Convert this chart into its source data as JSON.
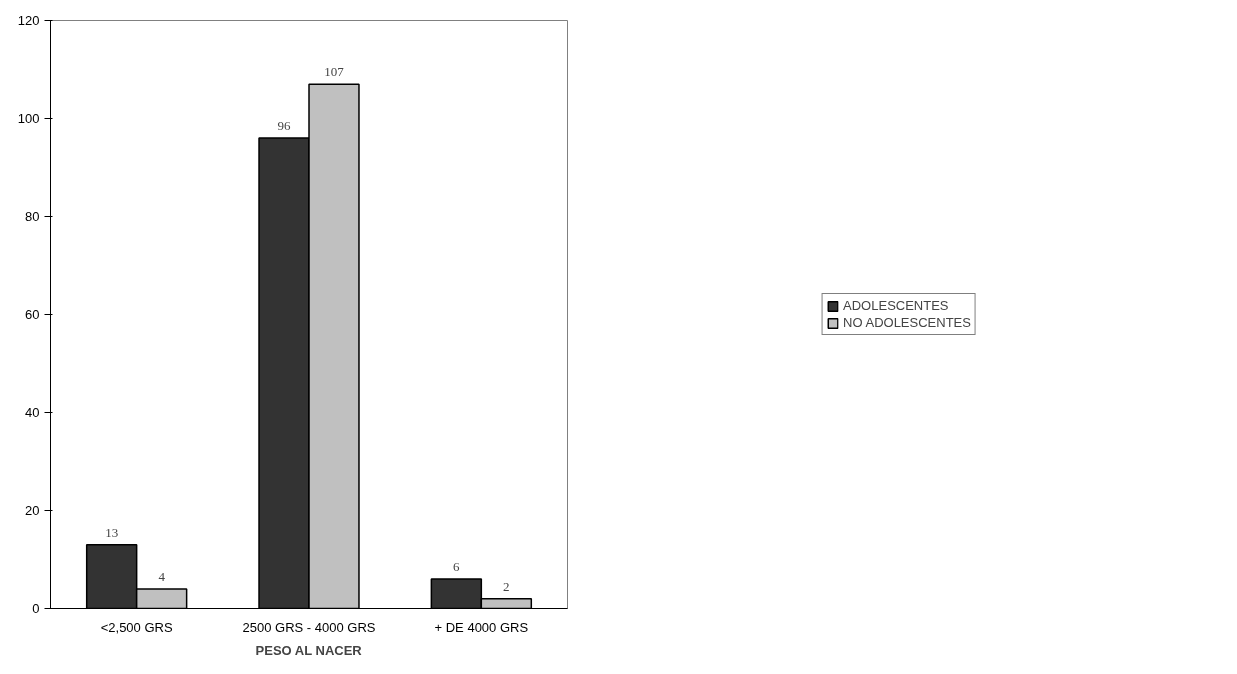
{
  "chart_data": {
    "type": "bar",
    "xlabel": "PESO AL NACER",
    "categories": [
      "<2,500 GRS",
      "2500 GRS - 4000 GRS",
      "+ DE 4000 GRS"
    ],
    "series": [
      {
        "name": "ADOLESCENTES",
        "color": "#333333",
        "values": [
          13,
          96,
          6
        ]
      },
      {
        "name": "NO ADOLESCENTES",
        "color": "#c0c0c0",
        "values": [
          4,
          107,
          2
        ]
      }
    ],
    "ylim": [
      0,
      120
    ],
    "yticks": [
      0,
      20,
      40,
      60,
      80,
      100,
      120
    ],
    "grid": false,
    "legend": "right",
    "data_labels": true
  }
}
